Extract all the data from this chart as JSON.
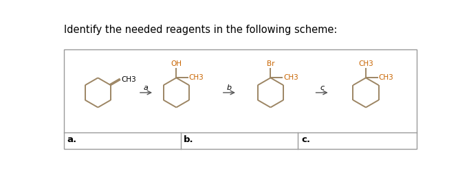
{
  "title": "Identify the needed reagents in the following scheme:",
  "title_fontsize": 10.5,
  "background_color": "#ffffff",
  "border_color": "#999999",
  "molecule_color": "#9C8563",
  "text_color": "#000000",
  "orange_text": "#C86400",
  "label_a": "a.",
  "label_b": "b.",
  "label_c": "c.",
  "arrow_label_a": "a",
  "arrow_label_b": "b",
  "arrow_label_c": "c",
  "arrow_color": "#555555",
  "mol1_ch3": "CH3",
  "mol2_oh": "OH",
  "mol2_ch3": "CH3",
  "mol3_br": "Br",
  "mol3_ch3": "CH3",
  "mol4_ch3_top": "CH3",
  "mol4_ch3_bot": "CH3",
  "fig_width": 6.82,
  "fig_height": 2.71,
  "dpi": 100
}
